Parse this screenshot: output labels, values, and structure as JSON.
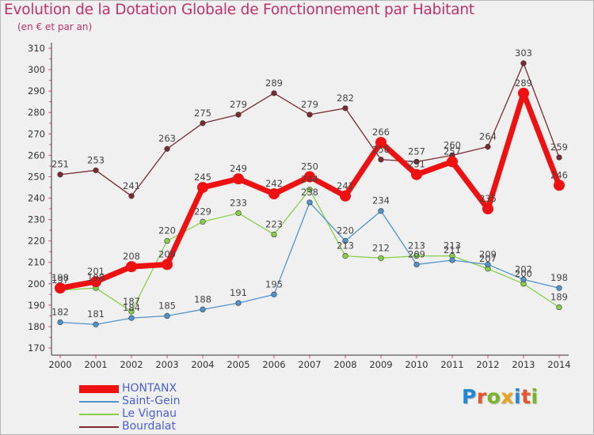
{
  "title": "Evolution de la Dotation Globale de Fonctionnement par Habitant",
  "subtitle": "(en € et par an)",
  "logo": {
    "text": "Proxiti",
    "letters": [
      "P",
      "r",
      "o",
      "x",
      "i",
      "t",
      "i"
    ],
    "colors": [
      "#1e88d6",
      "#e8532c",
      "#7ab527",
      "#e8a21c",
      "#1e88d6",
      "#e8532c",
      "#7ab527"
    ]
  },
  "colors": {
    "title": "#c0306a",
    "legend_text": "#4a5fd8",
    "axis": "#333333",
    "grid_tick": "#e05080",
    "background": "#f0f0f0"
  },
  "chart_data": {
    "type": "line",
    "title": "Evolution de la Dotation Globale de Fonctionnement par Habitant",
    "subtitle": "(en € et par an)",
    "x": [
      "2000",
      "2001",
      "2002",
      "2003",
      "2004",
      "2005",
      "2006",
      "2007",
      "2008",
      "2009",
      "2010",
      "2011",
      "2012",
      "2013",
      "2014"
    ],
    "yticks": [
      "170",
      "180",
      "190",
      "200",
      "210",
      "220",
      "230",
      "240",
      "250",
      "260",
      "270",
      "280",
      "290",
      "300",
      "310"
    ],
    "ylim": [
      170,
      310
    ],
    "xlabel": "",
    "ylabel": "",
    "legend_position": "bottom-left",
    "series": [
      {
        "name": "HONTANX",
        "color": "#ee1111",
        "values": [
          198,
          201,
          208,
          209,
          245,
          249,
          242,
          250,
          241,
          266,
          251,
          257,
          235,
          289,
          246
        ],
        "labels": [
          "198",
          "201",
          "208",
          "209",
          "245",
          "249",
          "242",
          "250",
          "241",
          "266",
          "251",
          "257",
          "235",
          "289",
          "246"
        ]
      },
      {
        "name": "Saint-Gein",
        "color": "#4f94cc",
        "values": [
          182,
          181,
          184,
          185,
          188,
          191,
          195,
          238,
          220,
          234,
          209,
          211,
          209,
          202,
          198
        ],
        "labels": [
          "182",
          "181",
          "184",
          "185",
          "188",
          "191",
          "195",
          "238",
          "220",
          "234",
          "209",
          "211",
          "209",
          "202",
          "198"
        ]
      },
      {
        "name": "Le Vignau",
        "color": "#88d04a",
        "values": [
          197,
          198,
          187,
          220,
          229,
          233,
          223,
          244,
          213,
          212,
          213,
          213,
          207,
          200,
          189
        ],
        "labels": [
          "197",
          "198",
          "187",
          "220",
          "229",
          "233",
          "223",
          "244",
          "213",
          "212",
          "213",
          "213",
          "207",
          "200",
          "189"
        ]
      },
      {
        "name": "Bourdalat",
        "color": "#7a2a30",
        "values": [
          251,
          253,
          241,
          263,
          275,
          279,
          289,
          279,
          282,
          258,
          257,
          260,
          264,
          303,
          259
        ],
        "labels": [
          "251",
          "253",
          "241",
          "263",
          "275",
          "279",
          "289",
          "279",
          "282",
          "258",
          "257",
          "260",
          "264",
          "303",
          "259"
        ]
      }
    ]
  }
}
